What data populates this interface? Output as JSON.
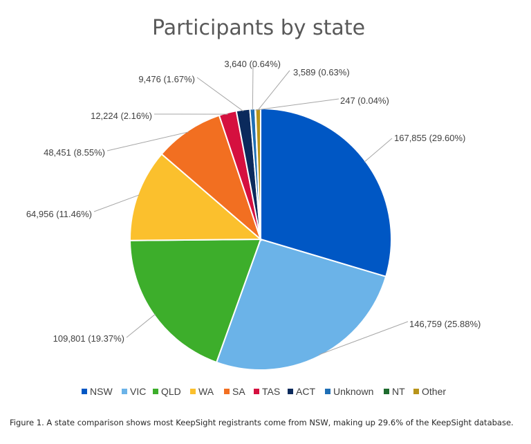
{
  "chart_data": {
    "type": "pie",
    "title": "Participants by state",
    "categories": [
      "NSW",
      "VIC",
      "QLD",
      "WA",
      "SA",
      "TAS",
      "ACT",
      "Unknown",
      "NT",
      "Other"
    ],
    "values": [
      167855,
      146759,
      109801,
      64956,
      48451,
      12224,
      9476,
      3640,
      247,
      3589
    ],
    "data_labels": [
      "167,855 (29.60%)",
      "146,759 (25.88%)",
      "109,801 (19.37%)",
      "64,956 (11.46%)",
      "48,451 (8.55%)",
      "12,224 (2.16%)",
      "9,476 (1.67%)",
      "3,640 (0.64%)",
      "247 (0.04%)",
      "3,589 (0.63%)"
    ],
    "colors": [
      "#0057C4",
      "#6BB3E8",
      "#3DAE2B",
      "#FBC02D",
      "#F26F21",
      "#D5103F",
      "#0B2A5C",
      "#1F6FB5",
      "#1E6B2E",
      "#B8941A"
    ],
    "legend_position": "bottom"
  },
  "caption": "Figure 1. A state comparison shows most KeepSight registrants come from NSW, making up 29.6% of the KeepSight database."
}
